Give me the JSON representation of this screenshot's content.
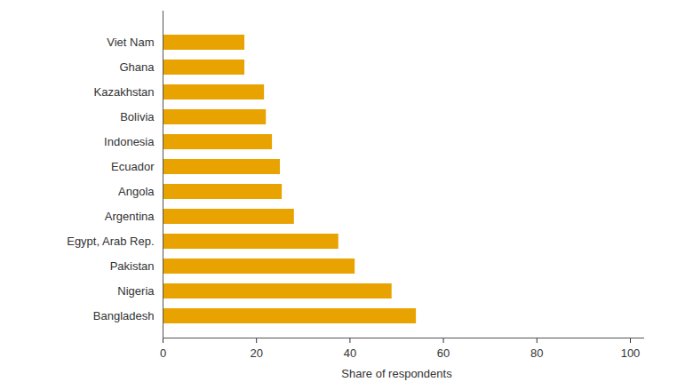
{
  "chart_data": {
    "type": "bar",
    "orientation": "horizontal",
    "categories": [
      "Viet Nam",
      "Ghana",
      "Kazakhstan",
      "Bolivia",
      "Indonesia",
      "Ecuador",
      "Angola",
      "Argentina",
      "Egypt, Arab Rep.",
      "Pakistan",
      "Nigeria",
      "Bangladesh"
    ],
    "values": [
      17.5,
      17.5,
      21.7,
      22.1,
      23.4,
      25.1,
      25.5,
      28.1,
      37.6,
      41.1,
      49.0,
      54.2
    ],
    "color": "#e8a300",
    "x_label": "Share of respondents",
    "xlim": [
      0,
      100
    ],
    "xticks": [
      0,
      20,
      40,
      60,
      80,
      100
    ],
    "grid": false
  }
}
